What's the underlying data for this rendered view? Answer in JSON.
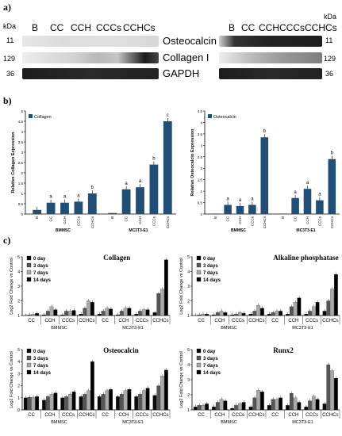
{
  "panel_labels": {
    "a": "a)",
    "b": "b)",
    "c": "c)"
  },
  "blot": {
    "kda": "kDa",
    "lanes": [
      "B",
      "CC",
      "CCH",
      "CCCs",
      "CCHCs"
    ],
    "proteins": [
      "Osteocalcin",
      "Collagen I",
      "GAPDH"
    ],
    "left_markers": [
      "11",
      "129",
      "36"
    ],
    "right_markers": [
      "11",
      "129",
      "36"
    ]
  },
  "colors": {
    "bar": "#1f4e79",
    "d0": "#0a0a0a",
    "d3": "#555555",
    "d7": "#aaaaaa",
    "d14": "#000000"
  },
  "chart_data": [
    {
      "type": "bar",
      "legend": [
        "Collagen"
      ],
      "ylabel": "Relative Collagen Expression",
      "ylim": [
        0,
        5
      ],
      "yticks": [
        "0",
        "0.5",
        "1",
        "1.5",
        "2",
        "2.5",
        "3",
        "3.5",
        "4",
        "4.5",
        "5"
      ],
      "groups": [
        "BMMSC",
        "MC3T3-E1"
      ],
      "categories": [
        "B",
        "CC",
        "CCH",
        "CCCs",
        "CCHCs"
      ],
      "series": [
        {
          "values": [
            0.2,
            0.55,
            0.55,
            0.6,
            1.0
          ],
          "letters": [
            "",
            "a",
            "a",
            "a",
            "b"
          ]
        },
        {
          "values": [
            0.05,
            1.2,
            1.3,
            2.4,
            4.5
          ],
          "letters": [
            "",
            "a",
            "a",
            "b",
            "c"
          ]
        }
      ]
    },
    {
      "type": "bar",
      "legend": [
        "Osteocalcin"
      ],
      "ylabel": "Relative Osteocalcin Expression",
      "ylim": [
        0,
        4.5
      ],
      "yticks": [
        "0",
        "0.5",
        "1",
        "1.5",
        "2",
        "2.5",
        "3",
        "3.5",
        "4",
        "4.5"
      ],
      "groups": [
        "BMMSC",
        "MC3T3-E1"
      ],
      "categories": [
        "B",
        "CC",
        "CCH",
        "CCCs",
        "CCHCs"
      ],
      "series": [
        {
          "values": [
            0.02,
            0.4,
            0.35,
            0.4,
            3.35
          ],
          "letters": [
            "",
            "a",
            "a",
            "a",
            "b"
          ]
        },
        {
          "values": [
            0.02,
            0.7,
            1.1,
            0.6,
            2.4
          ],
          "letters": [
            "",
            "a",
            "a",
            "a",
            "b"
          ]
        }
      ]
    },
    {
      "type": "bar",
      "title": "Collagen",
      "ylabel": "Log2 Fold Change vs Control",
      "ylim": [
        1,
        5
      ],
      "yticks": [
        "1",
        "2",
        "3",
        "4",
        "5"
      ],
      "legend": [
        "0 day",
        "3 days",
        "7 days",
        "14 days"
      ],
      "groups": [
        "BMMSC",
        "MC3T3-E1"
      ],
      "categories": [
        "CC",
        "CCH",
        "CCCs",
        "CCHCs"
      ],
      "values": [
        [
          [
            1.0,
            1.05,
            1.1,
            1.15
          ],
          [
            1.05,
            1.3,
            1.6,
            1.4
          ],
          [
            1.05,
            1.3,
            1.3,
            1.35
          ],
          [
            1.1,
            1.5,
            2.0,
            1.9
          ]
        ],
        [
          [
            1.1,
            1.3,
            1.5,
            1.45
          ],
          [
            1.05,
            1.3,
            1.5,
            1.5
          ],
          [
            1.1,
            1.3,
            1.4,
            1.4
          ],
          [
            1.2,
            2.5,
            2.8,
            4.8
          ]
        ]
      ]
    },
    {
      "type": "bar",
      "title": "Alkaline phosphatase",
      "ylabel": "Log2 Fold Change vs Control",
      "ylim": [
        1,
        5
      ],
      "yticks": [
        "1",
        "2",
        "3",
        "4",
        "5"
      ],
      "legend": [
        "0 day",
        "3 days",
        "7 days",
        "14 days"
      ],
      "groups": [
        "BMMSC",
        "MC3T3-E1"
      ],
      "categories": [
        "CC",
        "CCH",
        "CCCs",
        "CCHCs"
      ],
      "values": [
        [
          [
            1.0,
            1.05,
            1.1,
            1.1
          ],
          [
            1.05,
            1.2,
            1.3,
            1.2
          ],
          [
            1.05,
            1.1,
            1.2,
            1.15
          ],
          [
            1.1,
            1.3,
            1.7,
            1.5
          ]
        ],
        [
          [
            1.1,
            1.2,
            1.3,
            1.3
          ],
          [
            1.1,
            1.6,
            1.9,
            2.2
          ],
          [
            1.1,
            1.3,
            1.6,
            1.9
          ],
          [
            1.3,
            2.0,
            2.8,
            3.8
          ]
        ]
      ]
    },
    {
      "type": "bar",
      "title": "Osteocalcin",
      "ylabel": "Log2 Fold Change vs Control",
      "ylim": [
        0,
        5
      ],
      "yticks": [
        "0",
        "1",
        "2",
        "3",
        "4",
        "5"
      ],
      "legend": [
        "0 day",
        "3 days",
        "7 days",
        "14 days"
      ],
      "groups": [
        "BMMSC",
        "MC3T3-E1"
      ],
      "categories": [
        "CC",
        "CCH",
        "CCCs",
        "CCHCs"
      ],
      "values": [
        [
          [
            1.0,
            1.05,
            1.05,
            1.1
          ],
          [
            0.8,
            1.1,
            1.3,
            1.4
          ],
          [
            1.0,
            1.1,
            1.3,
            1.5
          ],
          [
            1.1,
            1.3,
            1.6,
            4.0
          ]
        ],
        [
          [
            1.1,
            1.3,
            1.6,
            1.7
          ],
          [
            1.1,
            1.3,
            1.6,
            1.7
          ],
          [
            1.1,
            1.3,
            1.6,
            1.8
          ],
          [
            1.2,
            2.0,
            2.8,
            3.3
          ]
        ]
      ]
    },
    {
      "type": "bar",
      "title": "Runx2",
      "ylabel": "Log2 Fold Change vs Control",
      "ylim": [
        1,
        5
      ],
      "yticks": [
        "1",
        "2",
        "3",
        "4",
        "5"
      ],
      "legend": [
        "0 day",
        "3 days",
        "7 days",
        "14 days"
      ],
      "groups": [
        "BMMSC",
        "MC3T3-E1"
      ],
      "categories": [
        "CC",
        "CCH",
        "CCCs",
        "CCHCs"
      ],
      "values": [
        [
          [
            1.2,
            1.3,
            1.3,
            1.4
          ],
          [
            1.2,
            1.5,
            1.7,
            1.6
          ],
          [
            1.1,
            1.3,
            1.4,
            1.5
          ],
          [
            1.2,
            1.8,
            2.3,
            2.2
          ]
        ],
        [
          [
            1.3,
            1.7,
            1.7,
            1.8
          ],
          [
            1.3,
            2.1,
            1.8,
            1.5
          ],
          [
            1.2,
            1.6,
            1.9,
            1.7
          ],
          [
            1.4,
            4.0,
            3.6,
            3.1
          ]
        ]
      ]
    }
  ]
}
